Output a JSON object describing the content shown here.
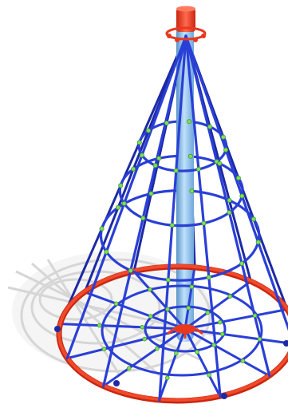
{
  "image": {
    "subject": "cone-rope-climbing-net-playground-equipment",
    "colors": {
      "background": "#ffffff",
      "rope": "#2a3fd6",
      "rope_dark": "#1d2aa3",
      "pole": "#7fb8e8",
      "pole_highlight": "#bfe0fb",
      "pole_shadow": "#5a93c8",
      "base_ring": "#e8391f",
      "cap": "#e8391f",
      "connector": "#7ee05a",
      "shadow": "#d9d9d9"
    }
  }
}
